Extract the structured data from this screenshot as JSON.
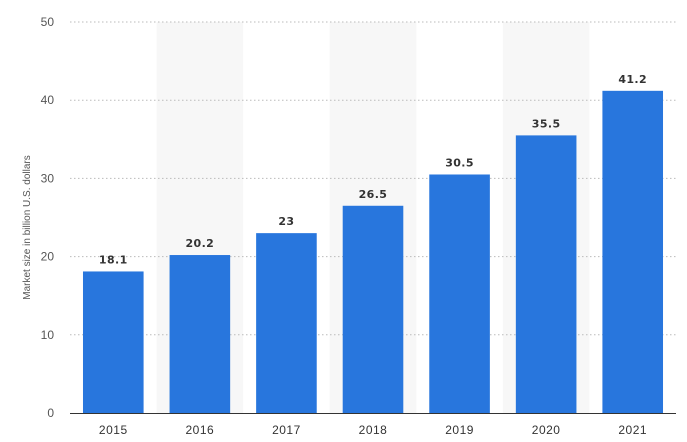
{
  "chart_data": {
    "type": "bar",
    "categories": [
      "2015",
      "2016",
      "2017",
      "2018",
      "2019",
      "2020",
      "2021"
    ],
    "values": [
      18.1,
      20.2,
      23,
      26.5,
      30.5,
      35.5,
      41.2
    ],
    "data_labels": [
      "18.1",
      "20.2",
      "23",
      "26.5",
      "30.5",
      "35.5",
      "41.2"
    ],
    "title": "",
    "xlabel": "",
    "ylabel": "Market size in billion U.S. dollars",
    "ylim": [
      0,
      50
    ],
    "yticks": [
      "0",
      "10",
      "20",
      "30",
      "40",
      "50"
    ],
    "grid": true,
    "alternating_band": true,
    "bar_color": "#2876dd",
    "band_color": "#f7f7f7",
    "grid_color": "#bbbbbb"
  }
}
